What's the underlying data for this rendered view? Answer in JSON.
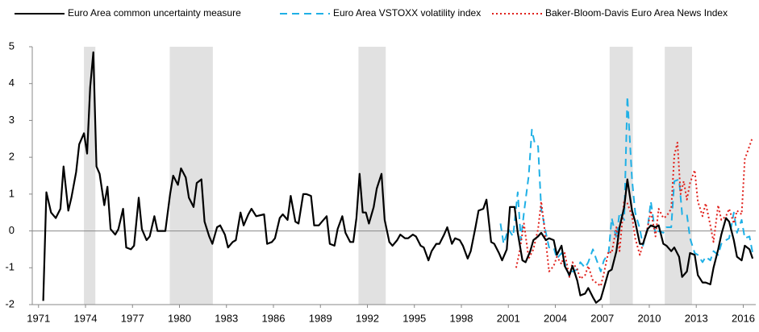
{
  "chart_data": {
    "type": "line",
    "xlim": [
      1970.6,
      2016.8
    ],
    "xticks": [
      1971,
      1974,
      1977,
      1980,
      1983,
      1986,
      1989,
      1992,
      1995,
      1998,
      2001,
      2004,
      2007,
      2010,
      2013,
      2016
    ],
    "ylim": [
      -2,
      5
    ],
    "yticks": [
      -2,
      -1,
      0,
      1,
      2,
      3,
      4,
      5
    ],
    "shaded_periods": [
      [
        1973.9,
        1974.63
      ],
      [
        1979.38,
        1982.13
      ],
      [
        1991.43,
        1993.17
      ],
      [
        2007.47,
        2008.95
      ],
      [
        2010.99,
        2012.73
      ]
    ],
    "shade_color": "#e1e1e1",
    "series": [
      {
        "name": "Euro Area common uncertainty measure",
        "color": "#000000",
        "style": "solid",
        "x": [
          1971.3,
          1971.5,
          1971.8,
          1972.1,
          1972.4,
          1972.6,
          1972.9,
          1973.1,
          1973.4,
          1973.6,
          1973.9,
          1974.1,
          1974.3,
          1974.5,
          1974.7,
          1974.9,
          1975.2,
          1975.4,
          1975.6,
          1975.9,
          1976.1,
          1976.4,
          1976.6,
          1976.9,
          1977.1,
          1977.4,
          1977.6,
          1977.9,
          1978.1,
          1978.4,
          1978.6,
          1979.1,
          1979.4,
          1979.6,
          1979.9,
          1980.1,
          1980.4,
          1980.6,
          1980.9,
          1981.1,
          1981.4,
          1981.6,
          1981.9,
          1982.1,
          1982.4,
          1982.6,
          1982.9,
          1983.1,
          1983.4,
          1983.6,
          1983.9,
          1984.1,
          1984.4,
          1984.6,
          1984.9,
          1985.4,
          1985.6,
          1985.9,
          1986.1,
          1986.4,
          1986.6,
          1986.9,
          1987.1,
          1987.4,
          1987.6,
          1987.9,
          1988.1,
          1988.4,
          1988.6,
          1988.9,
          1989.1,
          1989.4,
          1989.6,
          1989.9,
          1990.1,
          1990.4,
          1990.6,
          1990.9,
          1991.1,
          1991.3,
          1991.5,
          1991.7,
          1991.9,
          1992.1,
          1992.4,
          1992.6,
          1992.9,
          1993.1,
          1993.4,
          1993.6,
          1993.9,
          1994.1,
          1994.4,
          1994.6,
          1994.9,
          1995.1,
          1995.4,
          1995.6,
          1995.9,
          1996.1,
          1996.4,
          1996.6,
          1996.9,
          1997.1,
          1997.4,
          1997.6,
          1997.9,
          1998.1,
          1998.4,
          1998.6,
          1998.9,
          1999.1,
          1999.4,
          1999.6,
          1999.9,
          2000.1,
          2000.4,
          2000.6,
          2000.9,
          2001.1,
          2001.4,
          2001.6,
          2001.9,
          2002.1,
          2002.4,
          2002.6,
          2002.9,
          2003.1,
          2003.4,
          2003.6,
          2003.9,
          2004.1,
          2004.4,
          2004.6,
          2004.9,
          2005.1,
          2005.4,
          2005.6,
          2005.9,
          2006.1,
          2006.4,
          2006.6,
          2006.9,
          2007.1,
          2007.4,
          2007.6,
          2007.9,
          2008.1,
          2008.4,
          2008.6,
          2008.9,
          2009.1,
          2009.4,
          2009.6,
          2009.9,
          2010.1,
          2010.4,
          2010.6,
          2010.9,
          2011.1,
          2011.4,
          2011.6,
          2011.9,
          2012.1,
          2012.4,
          2012.6,
          2012.9,
          2013.1,
          2013.4,
          2013.6,
          2013.9,
          2014.1,
          2014.4,
          2014.6,
          2014.9,
          2015.1,
          2015.4,
          2015.6,
          2015.9,
          2016.1,
          2016.4,
          2016.6
        ],
        "values": [
          -1.9,
          1.05,
          0.5,
          0.35,
          0.6,
          1.75,
          0.55,
          0.9,
          1.6,
          2.35,
          2.65,
          2.1,
          3.9,
          4.85,
          1.75,
          1.55,
          0.7,
          1.2,
          0.05,
          -0.1,
          0.05,
          0.6,
          -0.45,
          -0.5,
          -0.4,
          0.9,
          0.05,
          -0.25,
          -0.15,
          0.4,
          0.0,
          0.0,
          1.0,
          1.5,
          1.25,
          1.7,
          1.45,
          0.9,
          0.65,
          1.3,
          1.4,
          0.25,
          -0.15,
          -0.35,
          0.1,
          0.15,
          -0.1,
          -0.45,
          -0.3,
          -0.25,
          0.5,
          0.15,
          0.45,
          0.6,
          0.4,
          0.45,
          -0.35,
          -0.3,
          -0.2,
          0.35,
          0.45,
          0.3,
          0.95,
          0.25,
          0.2,
          1.0,
          1.0,
          0.95,
          0.15,
          0.15,
          0.25,
          0.4,
          -0.35,
          -0.4,
          0.05,
          0.4,
          -0.05,
          -0.3,
          -0.3,
          0.35,
          1.55,
          0.5,
          0.5,
          0.2,
          0.65,
          1.15,
          1.55,
          0.3,
          -0.3,
          -0.4,
          -0.25,
          -0.1,
          -0.2,
          -0.2,
          -0.1,
          -0.15,
          -0.4,
          -0.45,
          -0.8,
          -0.55,
          -0.35,
          -0.35,
          -0.1,
          0.1,
          -0.35,
          -0.2,
          -0.25,
          -0.4,
          -0.75,
          -0.55,
          0.1,
          0.55,
          0.6,
          0.85,
          -0.3,
          -0.35,
          -0.6,
          -0.8,
          -0.5,
          0.65,
          0.65,
          -0.05,
          -0.8,
          -0.85,
          -0.55,
          -0.25,
          -0.15,
          -0.05,
          -0.25,
          -0.2,
          -0.25,
          -0.65,
          -0.4,
          -0.95,
          -1.2,
          -0.95,
          -1.35,
          -1.75,
          -1.7,
          -1.55,
          -1.8,
          -1.95,
          -1.85,
          -1.55,
          -1.1,
          -1.05,
          -0.55,
          0.1,
          0.65,
          1.4,
          0.55,
          0.25,
          -0.35,
          -0.35,
          0.05,
          0.15,
          0.1,
          0.15,
          -0.35,
          -0.4,
          -0.55,
          -0.45,
          -0.7,
          -1.25,
          -1.1,
          -0.6,
          -0.65,
          -1.2,
          -1.4,
          -1.4,
          -1.45,
          -1.0,
          -0.5,
          -0.1,
          0.35,
          0.25,
          -0.25,
          -0.7,
          -0.8,
          -0.4,
          -0.5,
          -0.75
        ]
      },
      {
        "name": "Euro Area VSTOXX volatility index",
        "color": "#1fb0e6",
        "style": "dashed",
        "x": [
          2000.5,
          2000.7,
          2001.0,
          2001.3,
          2001.6,
          2001.8,
          2002.0,
          2002.3,
          2002.5,
          2002.7,
          2002.9,
          2003.1,
          2003.4,
          2003.6,
          2003.9,
          2004.1,
          2004.4,
          2004.6,
          2004.9,
          2005.1,
          2005.4,
          2005.6,
          2005.9,
          2006.1,
          2006.4,
          2006.6,
          2006.9,
          2007.1,
          2007.4,
          2007.6,
          2007.9,
          2008.1,
          2008.4,
          2008.6,
          2008.9,
          2009.1,
          2009.4,
          2009.6,
          2009.9,
          2010.1,
          2010.4,
          2010.6,
          2010.9,
          2011.1,
          2011.4,
          2011.6,
          2011.9,
          2012.1,
          2012.4,
          2012.6,
          2012.9,
          2013.1,
          2013.4,
          2013.6,
          2013.9,
          2014.1,
          2014.4,
          2014.6,
          2014.9,
          2015.1,
          2015.4,
          2015.6,
          2015.9,
          2016.1,
          2016.4,
          2016.6
        ],
        "values": [
          0.2,
          -0.35,
          0.05,
          -0.15,
          1.05,
          -0.25,
          0.5,
          1.5,
          2.75,
          2.35,
          2.3,
          0.6,
          -0.05,
          -0.45,
          -0.45,
          -0.75,
          -0.6,
          -0.85,
          -1.25,
          -1.1,
          -1.05,
          -0.85,
          -1.0,
          -0.85,
          -0.5,
          -0.75,
          -1.1,
          -0.8,
          -0.6,
          0.35,
          -0.2,
          0.5,
          0.3,
          3.65,
          1.4,
          0.5,
          0.05,
          -0.4,
          0.1,
          0.8,
          -0.1,
          0.0,
          -0.05,
          0.1,
          0.1,
          1.35,
          1.4,
          0.45,
          0.45,
          -0.2,
          -0.6,
          -0.65,
          -0.85,
          -0.7,
          -0.8,
          -0.55,
          -0.65,
          -0.35,
          -0.25,
          -0.2,
          0.5,
          -0.05,
          0.3,
          -0.2,
          -0.15,
          -0.6
        ]
      },
      {
        "name": "Baker-Bloom-Davis Euro Area News Index",
        "color": "#e0201b",
        "style": "dotted",
        "x": [
          2001.5,
          2001.7,
          2002.0,
          2002.3,
          2002.6,
          2002.9,
          2003.1,
          2003.3,
          2003.6,
          2003.9,
          2004.1,
          2004.4,
          2004.6,
          2004.9,
          2005.1,
          2005.4,
          2005.6,
          2005.9,
          2006.1,
          2006.4,
          2006.6,
          2006.9,
          2007.1,
          2007.4,
          2007.6,
          2007.9,
          2008.1,
          2008.4,
          2008.6,
          2008.9,
          2009.1,
          2009.4,
          2009.6,
          2009.9,
          2010.1,
          2010.4,
          2010.6,
          2010.9,
          2011.1,
          2011.4,
          2011.6,
          2011.8,
          2012.0,
          2012.2,
          2012.4,
          2012.6,
          2012.9,
          2013.1,
          2013.4,
          2013.6,
          2013.9,
          2014.1,
          2014.4,
          2014.6,
          2014.9,
          2015.1,
          2015.4,
          2015.6,
          2015.9,
          2016.1,
          2016.4,
          2016.6
        ],
        "values": [
          -1.0,
          -0.6,
          0.2,
          -0.75,
          -0.5,
          0.05,
          0.8,
          0.1,
          -1.1,
          -0.95,
          -0.7,
          -0.9,
          -0.6,
          -1.25,
          -0.85,
          -1.05,
          -1.3,
          -1.2,
          -0.95,
          -1.35,
          -1.4,
          -1.5,
          -1.15,
          -0.55,
          -0.6,
          0.1,
          -0.55,
          0.85,
          0.75,
          0.4,
          -0.2,
          -0.65,
          -0.35,
          0.1,
          0.55,
          -0.15,
          0.6,
          0.35,
          0.4,
          0.6,
          2.05,
          2.4,
          1.0,
          1.35,
          0.85,
          1.3,
          1.65,
          0.8,
          0.4,
          0.75,
          0.15,
          -0.3,
          0.7,
          0.3,
          0.4,
          0.6,
          0.2,
          0.55,
          0.45,
          1.95,
          2.3,
          2.55
        ]
      }
    ]
  }
}
